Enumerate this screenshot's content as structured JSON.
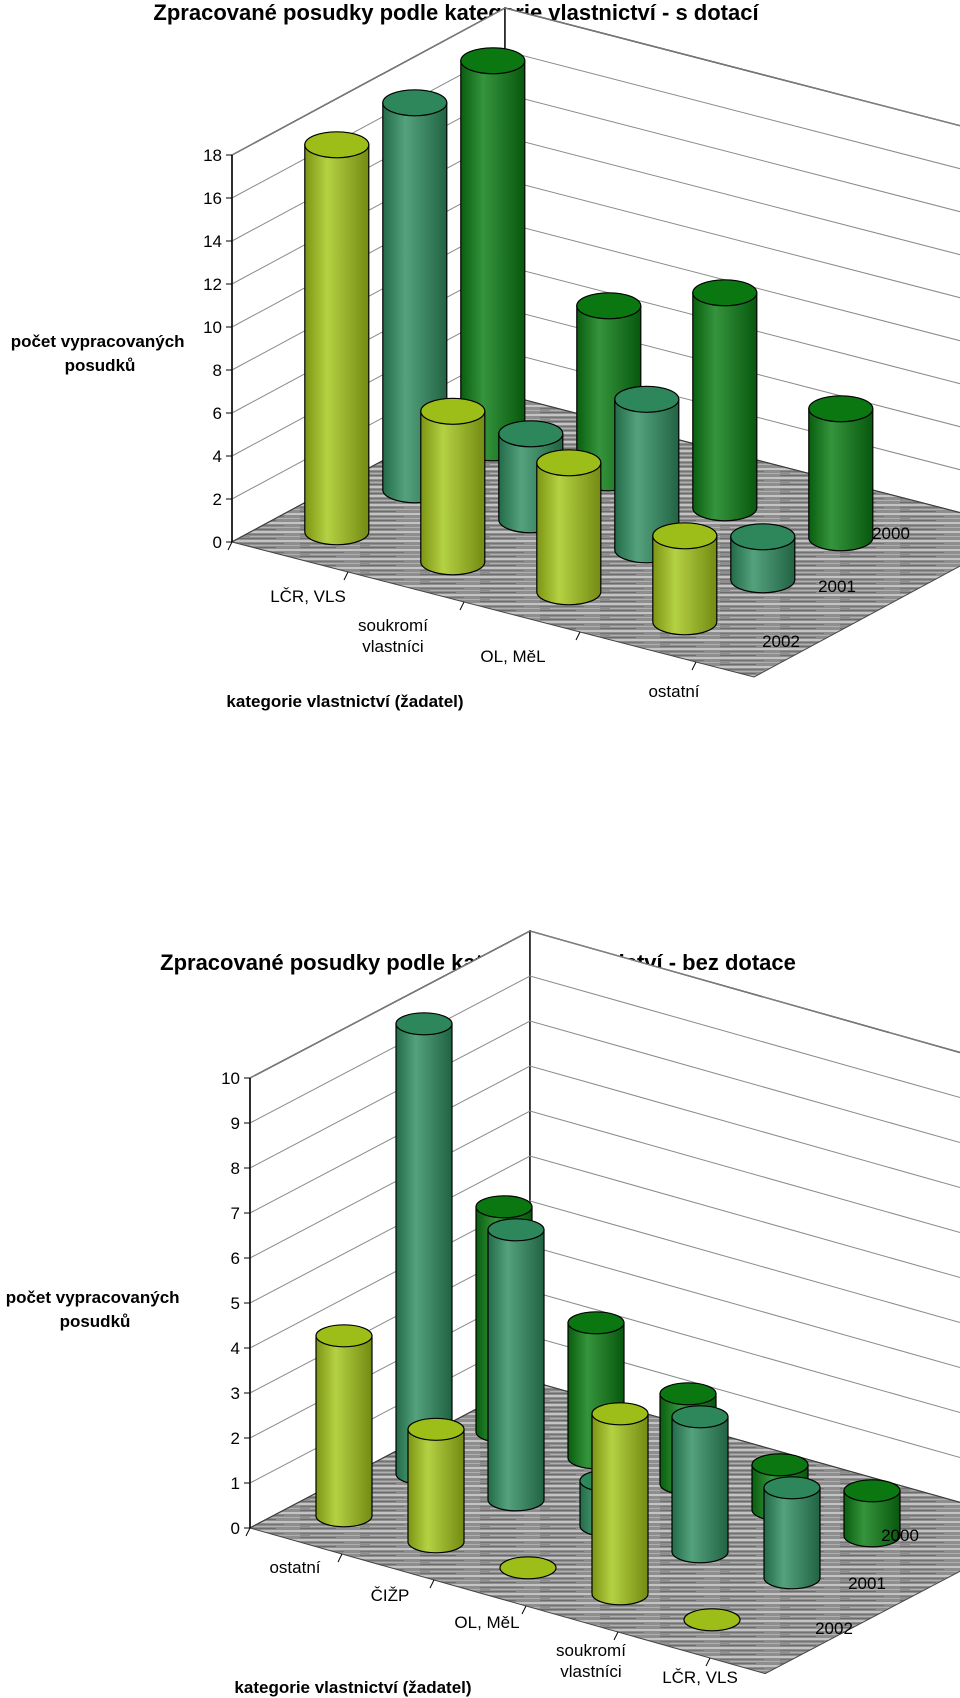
{
  "colors": {
    "year_2000": "#0a7d12",
    "year_2001": "#2f8e60",
    "year_2002": "#a5c71a",
    "floor": "#9a9a9a"
  },
  "chart_data": [
    {
      "type": "bar3d-cylinder",
      "title": "Zpracované posudky podle kategorie vlastnictví - s dotací",
      "xlabel": "kategorie vlastnictví (žadatel)",
      "ylabel_lines": [
        "počet vypracovaných",
        "posudků"
      ],
      "ylim": [
        0,
        18
      ],
      "yticks": [
        "0",
        "2",
        "4",
        "6",
        "8",
        "10",
        "12",
        "14",
        "16",
        "18"
      ],
      "categories": [
        "LČR, VLS",
        "soukromí vlastníci",
        "OL, MěL",
        "ostatní"
      ],
      "category_label_lines": [
        [
          "LČR, VLS"
        ],
        [
          "soukromí",
          "vlastníci"
        ],
        [
          "OL, MěL"
        ],
        [
          "ostatní"
        ]
      ],
      "series": [
        {
          "name": "2000",
          "values": [
            18,
            8,
            10,
            6
          ]
        },
        {
          "name": "2001",
          "values": [
            18,
            4,
            7,
            2
          ]
        },
        {
          "name": "2002",
          "values": [
            18,
            7,
            6,
            4
          ]
        }
      ]
    },
    {
      "type": "bar3d-cylinder",
      "title": "Zpracované posudky podle kategorie vlastnictví - bez dotace",
      "xlabel": "kategorie vlastnictví (žadatel)",
      "ylabel_lines": [
        "počet vypracovaných",
        "posudků"
      ],
      "ylim": [
        0,
        10
      ],
      "yticks": [
        "0",
        "1",
        "2",
        "3",
        "4",
        "5",
        "6",
        "7",
        "8",
        "9",
        "10"
      ],
      "categories": [
        "ostatní",
        "ČIŽP",
        "OL, MěL",
        "soukromí vlastníci",
        "LČR, VLS"
      ],
      "category_label_lines": [
        [
          "ostatní"
        ],
        [
          "ČIŽP"
        ],
        [
          "OL, MěL"
        ],
        [
          "soukromí",
          "vlastníci"
        ],
        [
          "LČR, VLS"
        ]
      ],
      "series": [
        {
          "name": "2000",
          "values": [
            5,
            3,
            2,
            1,
            1
          ]
        },
        {
          "name": "2001",
          "values": [
            10,
            6,
            1,
            3,
            2
          ]
        },
        {
          "name": "2002",
          "values": [
            4,
            2.5,
            0,
            4,
            0
          ]
        }
      ]
    }
  ]
}
